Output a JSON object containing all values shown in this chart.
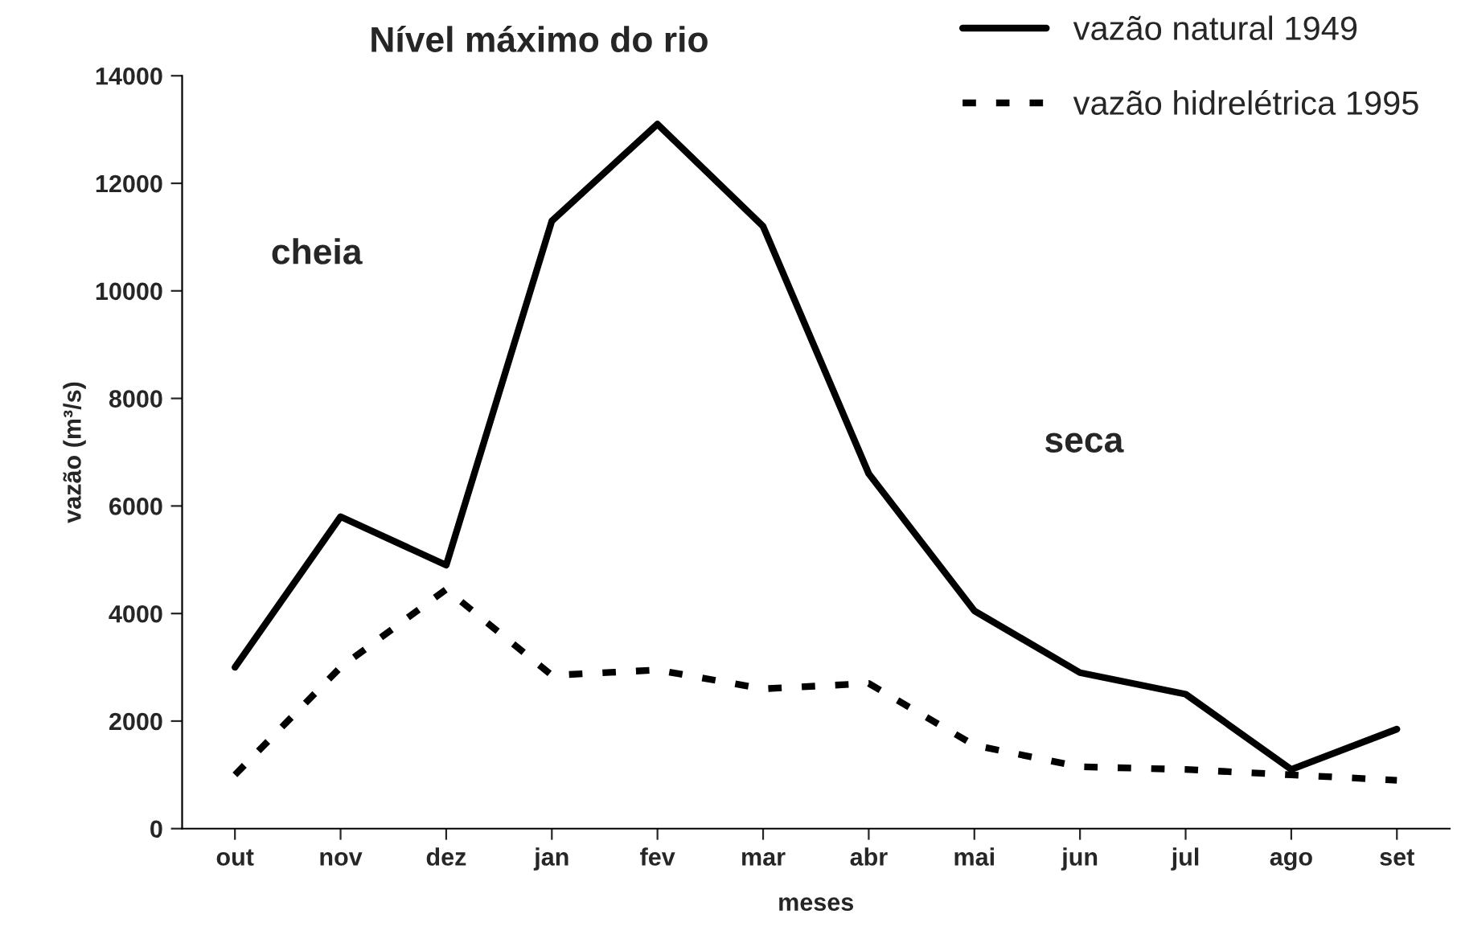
{
  "chart_data": {
    "type": "line",
    "title": "Nível máximo do rio",
    "xlabel": "meses",
    "ylabel": "vazão (m³/s)",
    "categories": [
      "out",
      "nov",
      "dez",
      "jan",
      "fev",
      "mar",
      "abr",
      "mai",
      "jun",
      "jul",
      "ago",
      "set"
    ],
    "series": [
      {
        "name": "vazão natural 1949",
        "color": "#000000",
        "line_style": "solid",
        "values": [
          3000,
          5800,
          4900,
          11300,
          13100,
          11200,
          6600,
          4050,
          2900,
          2500,
          1100,
          1850
        ]
      },
      {
        "name": "vazão hidrelétrica 1995",
        "color": "#000000",
        "line_style": "dashed",
        "values": [
          1000,
          3000,
          4450,
          2850,
          2950,
          2600,
          2700,
          1550,
          1150,
          1100,
          1000,
          900
        ]
      }
    ],
    "ylim": [
      0,
      14000
    ],
    "yticks": [
      0,
      2000,
      4000,
      6000,
      8000,
      10000,
      12000,
      14000
    ],
    "annotations": [
      "cheia",
      "seca"
    ],
    "legend": "top right",
    "grid": false,
    "marker": "none"
  }
}
